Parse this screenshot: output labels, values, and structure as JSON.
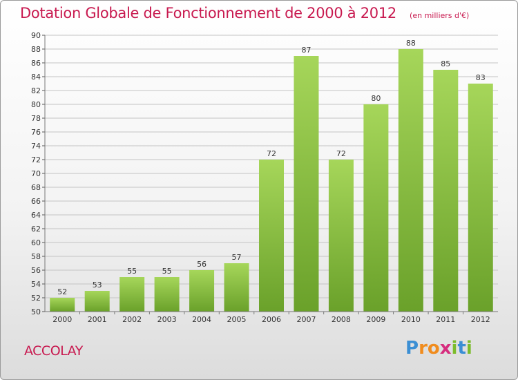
{
  "title": "Dotation Globale de Fonctionnement de 2000 à 2012",
  "subtitle": "(en milliers d'€)",
  "commune": "ACCOLAY",
  "logo": {
    "text": "Proxiti",
    "letters": [
      {
        "char": "P",
        "color": "#3b8fd4"
      },
      {
        "char": "r",
        "color": "#f08c1e"
      },
      {
        "char": "o",
        "color": "#f08c1e"
      },
      {
        "char": "x",
        "color": "#d62d7e"
      },
      {
        "char": "i",
        "color": "#7cbc2b"
      },
      {
        "char": "t",
        "color": "#3b8fd4"
      },
      {
        "char": "i",
        "color": "#7cbc2b"
      }
    ]
  },
  "colors": {
    "title": "#c8194f",
    "bar_light": "#a6d65a",
    "bar_dark": "#6aa12a",
    "grid": "#c4c4c4"
  },
  "chart_data": {
    "type": "bar",
    "categories": [
      "2000",
      "2001",
      "2002",
      "2003",
      "2004",
      "2005",
      "2006",
      "2007",
      "2008",
      "2009",
      "2010",
      "2011",
      "2012"
    ],
    "values": [
      52,
      53,
      55,
      55,
      56,
      57,
      72,
      87,
      72,
      80,
      88,
      85,
      83
    ],
    "value_labels": [
      "52",
      "53",
      "55",
      "55",
      "56",
      "57",
      "72",
      "87",
      "72",
      "80",
      "88",
      "85",
      "83"
    ],
    "ylim": [
      50,
      90
    ],
    "ytick_step": 2,
    "ytick_labels": [
      "50",
      "52",
      "54",
      "56",
      "58",
      "60",
      "62",
      "64",
      "66",
      "68",
      "70",
      "72",
      "74",
      "76",
      "78",
      "80",
      "82",
      "84",
      "86",
      "88",
      "90"
    ],
    "xlabel": "",
    "ylabel": "",
    "grid": true
  }
}
